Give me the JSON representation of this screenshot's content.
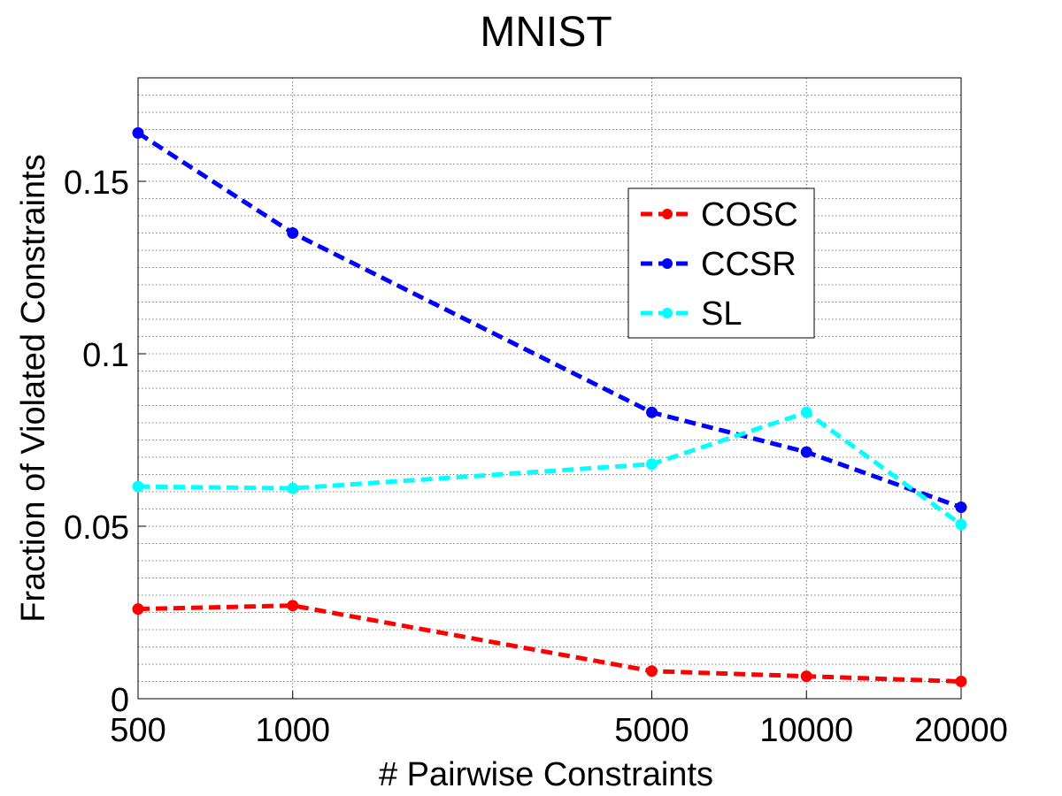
{
  "chart_data": {
    "type": "line",
    "title": "MNIST",
    "xlabel": "# Pairwise Constraints",
    "ylabel": "Fraction of Violated Constraints",
    "x_scale": "log",
    "x": [
      500,
      1000,
      5000,
      10000,
      20000
    ],
    "x_tick_labels": [
      "500",
      "1000",
      "5000",
      "10000",
      "20000"
    ],
    "xlim": [
      500,
      20000
    ],
    "ylim": [
      0,
      0.18
    ],
    "y_ticks": [
      0,
      0.05,
      0.1,
      0.15
    ],
    "y_tick_labels": [
      "0",
      "0.05",
      "0.1",
      "0.15"
    ],
    "grid": true,
    "legend_position": "top-right",
    "series": [
      {
        "name": "COSC",
        "color": "#ff0000",
        "values": [
          0.026,
          0.027,
          0.008,
          0.0065,
          0.005
        ]
      },
      {
        "name": "CCSR",
        "color": "#0000ff",
        "values": [
          0.164,
          0.135,
          0.083,
          0.0715,
          0.0555
        ]
      },
      {
        "name": "SL",
        "color": "#00ffff",
        "values": [
          0.0615,
          0.061,
          0.068,
          0.083,
          0.0505
        ]
      }
    ]
  }
}
